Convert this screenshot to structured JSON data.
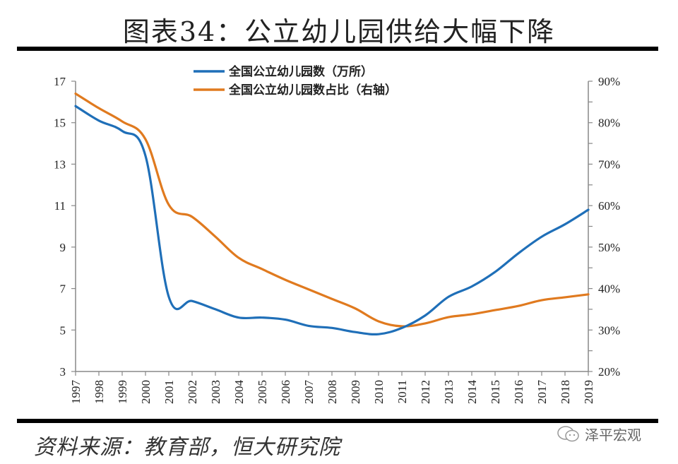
{
  "header": {
    "title": "图表34：公立幼儿园供给大幅下降"
  },
  "footer": {
    "source": "资料来源：教育部，恒大研究院",
    "brand": "泽平宏观",
    "brand_icon": "wechat-icon"
  },
  "chart_data": {
    "type": "line",
    "title": "图表34：公立幼儿园供给大幅下降",
    "xlabel": "",
    "ylabel": "",
    "ylabel_right": "",
    "x": [
      "1997",
      "1998",
      "1999",
      "2000",
      "2001",
      "2002",
      "2003",
      "2004",
      "2005",
      "2006",
      "2007",
      "2008",
      "2009",
      "2010",
      "2011",
      "2012",
      "2013",
      "2014",
      "2015",
      "2016",
      "2017",
      "2018",
      "2019"
    ],
    "y_left": {
      "lim": [
        3,
        17
      ],
      "ticks": [
        3,
        5,
        7,
        9,
        11,
        13,
        15,
        17
      ]
    },
    "y_right": {
      "lim": [
        20,
        90
      ],
      "ticks": [
        20,
        30,
        40,
        50,
        60,
        70,
        80,
        90
      ],
      "tick_suffix": "%"
    },
    "grid": false,
    "legend_position": "top-center",
    "series": [
      {
        "name": "全国公立幼儿园数（万所）",
        "axis": "left",
        "color": "#1f6fb8",
        "values": [
          15.8,
          15.1,
          14.6,
          13.4,
          6.6,
          6.4,
          6.0,
          5.6,
          5.6,
          5.5,
          5.2,
          5.1,
          4.9,
          4.8,
          5.1,
          5.7,
          6.6,
          7.1,
          7.8,
          8.7,
          9.5,
          10.1,
          10.8
        ]
      },
      {
        "name": "全国公立幼儿园数占比（右轴）",
        "axis": "right",
        "color": "#e07a1f",
        "values": [
          87.0,
          83.5,
          80.3,
          76.0,
          60.2,
          57.3,
          52.5,
          47.4,
          44.7,
          42.1,
          39.8,
          37.5,
          35.2,
          32.1,
          30.9,
          31.6,
          33.1,
          33.8,
          34.8,
          35.8,
          37.2,
          37.9,
          38.6
        ]
      }
    ]
  }
}
